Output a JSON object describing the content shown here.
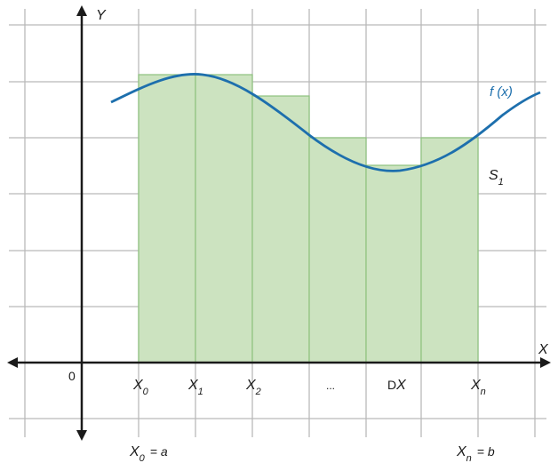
{
  "colors": {
    "grid": "#b9b9b9",
    "axis": "#1a1a1a",
    "rect_fill": "#cce3c0",
    "rect_stroke": "#8ec27e",
    "curve": "#1d6fad",
    "curve_label": "#1d6fad"
  },
  "axes": {
    "y_label": "Y",
    "x_label": "X",
    "origin_label": "0"
  },
  "labels": {
    "x0": {
      "main": "X",
      "sub": "0"
    },
    "x1": {
      "main": "X",
      "sub": "1"
    },
    "x2": {
      "main": "X",
      "sub": "2"
    },
    "ellipsis": "...",
    "dx": {
      "prefix": "D",
      "main": "X"
    },
    "xn": {
      "main": "X",
      "sub": "n"
    },
    "x0_eq": {
      "main": "X",
      "sub": "0",
      "rest": "= a"
    },
    "xn_eq": {
      "main": "X",
      "sub": "n",
      "rest": "= b"
    },
    "curve": "f (x)",
    "area": {
      "main": "S",
      "sub": "1"
    }
  }
}
